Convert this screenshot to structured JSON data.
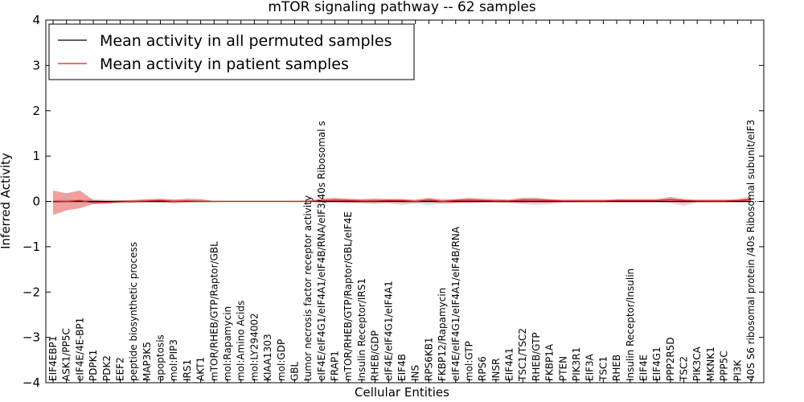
{
  "chart_data": {
    "type": "line",
    "title": "mTOR signaling pathway -- 62 samples",
    "xlabel": "Cellular Entities",
    "ylabel": "Inferred Activity",
    "ylim": [
      -4,
      4
    ],
    "yticks": [
      4,
      3,
      2,
      1,
      0,
      -1,
      -2,
      -3,
      -4
    ],
    "ytick_labels": [
      "4",
      "3",
      "2",
      "1",
      "0",
      "−1",
      "−2",
      "−3",
      "−4"
    ],
    "grid": false,
    "legend_position": "top-left",
    "categories": [
      "EIF4EBP1",
      "ASK1/PP5C",
      "eIF4E/4E-BP1",
      "PDPK1",
      "PDK2",
      "EEF2",
      "peptide biosynthetic process",
      "MAP3K5",
      "apoptosis",
      "mol:PIP3",
      "IRS1",
      "AKT1",
      "mTOR/RHEB/GTP/Raptor/GBL",
      "mol:Rapamycin",
      "mol:Amino Acids",
      "mol:LY294002",
      "KIAA1303",
      "mol:GDP",
      "GBL",
      "tumor necrosis factor receptor activity",
      "eIF4E/eIF4G1/eIF4A1/eIF4B/RNA/eIF3/40s Ribosomal s",
      "FRAP1",
      "mTOR/RHEB/GTP/Raptor/GBL/eIF4E",
      "Insulin Receptor/IRS1",
      "RHEB/GDP",
      "eIF4E/eIF4G1/eIF4A1",
      "EIF4B",
      "INS",
      "RPS6KB1",
      "FKBP12/Rapamycin",
      "eIF4E/eIF4G1/eIF4A1/eIF4B/RNA",
      "mol:GTP",
      "RPS6",
      "INSR",
      "EIF4A1",
      "TSC1/TSC2",
      "RHEB/GTP",
      "FKBP1A",
      "PTEN",
      "PIK3R1",
      "EIF3A",
      "TSC1",
      "RHEB",
      "Insulin Receptor/Insulin",
      "EIF4E",
      "EIF4G1",
      "PPP2R5D",
      "TSC2",
      "PIK3CA",
      "MKNK1",
      "PPP5C",
      "PI3K",
      "40S S6 ribosomal protein /40s Ribosomal subunit/eIF3"
    ],
    "series": [
      {
        "name": "Mean activity in all permuted samples",
        "color": "#000000",
        "values": [
          0,
          0,
          0,
          0,
          0,
          0,
          0,
          0,
          0,
          0,
          0,
          0,
          0,
          0,
          0,
          0,
          0,
          0,
          0,
          0,
          0,
          0,
          0,
          0,
          0,
          0,
          0,
          0,
          0,
          0,
          0,
          0,
          0,
          0,
          0,
          0,
          0,
          0,
          0,
          0,
          0,
          0,
          0,
          0,
          0,
          0,
          0,
          0,
          0,
          0,
          0,
          0,
          0
        ],
        "lower": [
          -0.03,
          -0.03,
          -0.03,
          -0.04,
          -0.03,
          -0.02,
          -0.02,
          -0.03,
          -0.03,
          -0.02,
          -0.02,
          -0.02,
          -0.01,
          -0.01,
          -0.01,
          -0.01,
          -0.01,
          -0.01,
          -0.01,
          -0.01,
          -0.03,
          -0.03,
          -0.05,
          -0.04,
          -0.06,
          -0.05,
          -0.08,
          -0.04,
          -0.08,
          -0.05,
          -0.04,
          -0.03,
          -0.03,
          -0.03,
          -0.03,
          -0.06,
          -0.08,
          -0.06,
          -0.03,
          -0.03,
          -0.02,
          -0.02,
          -0.02,
          -0.02,
          -0.02,
          -0.02,
          -0.04,
          -0.1,
          -0.03,
          -0.02,
          -0.02,
          -0.02,
          -0.02
        ],
        "upper": [
          0.04,
          0.04,
          0.04,
          0.05,
          0.04,
          0.03,
          0.03,
          0.04,
          0.05,
          0.04,
          0.03,
          0.03,
          0.01,
          0.01,
          0.01,
          0.01,
          0.01,
          0.01,
          0.01,
          0.01,
          0.03,
          0.04,
          0.05,
          0.05,
          0.06,
          0.06,
          0.05,
          0.05,
          0.06,
          0.06,
          0.05,
          0.04,
          0.04,
          0.04,
          0.04,
          0.05,
          0.05,
          0.05,
          0.03,
          0.03,
          0.03,
          0.03,
          0.03,
          0.03,
          0.03,
          0.03,
          0.04,
          0.05,
          0.03,
          0.03,
          0.03,
          0.03,
          0.03
        ]
      },
      {
        "name": "Mean activity in patient samples",
        "color": "#d62020",
        "values": [
          -0.01,
          0.0,
          0.02,
          -0.03,
          -0.02,
          -0.01,
          0.0,
          0.01,
          0.02,
          0.0,
          0.01,
          0.0,
          0.0,
          0.0,
          0.0,
          0.0,
          0.0,
          0.0,
          0.0,
          0.0,
          0.02,
          0.03,
          0.02,
          0.01,
          0.01,
          0.02,
          0.02,
          0.0,
          0.03,
          0.0,
          0.02,
          0.03,
          0.02,
          0.01,
          0.01,
          0.03,
          0.03,
          0.02,
          0.01,
          0.01,
          0.01,
          0.01,
          0.02,
          0.02,
          0.02,
          0.02,
          0.04,
          0.02,
          0.01,
          0.01,
          0.01,
          0.02,
          0.04
        ],
        "lower": [
          -0.3,
          -0.2,
          -0.15,
          -0.06,
          -0.05,
          -0.03,
          -0.03,
          -0.02,
          -0.02,
          -0.04,
          -0.02,
          -0.02,
          -0.01,
          -0.01,
          -0.01,
          -0.01,
          -0.01,
          -0.01,
          -0.01,
          -0.01,
          -0.02,
          -0.02,
          -0.02,
          -0.03,
          -0.03,
          -0.02,
          -0.03,
          -0.03,
          -0.02,
          -0.04,
          -0.03,
          -0.03,
          -0.02,
          -0.02,
          -0.03,
          -0.03,
          -0.03,
          -0.03,
          -0.02,
          -0.02,
          -0.02,
          -0.02,
          -0.02,
          -0.02,
          -0.02,
          -0.02,
          -0.02,
          -0.03,
          -0.02,
          -0.02,
          -0.02,
          -0.02,
          -0.02
        ],
        "upper": [
          0.24,
          0.18,
          0.24,
          0.03,
          0.01,
          0.02,
          0.03,
          0.05,
          0.06,
          0.04,
          0.06,
          0.05,
          0.01,
          0.01,
          0.01,
          0.01,
          0.01,
          0.01,
          0.01,
          0.02,
          0.06,
          0.08,
          0.06,
          0.05,
          0.06,
          0.05,
          0.05,
          0.03,
          0.08,
          0.03,
          0.05,
          0.08,
          0.06,
          0.05,
          0.04,
          0.08,
          0.08,
          0.05,
          0.04,
          0.04,
          0.04,
          0.04,
          0.05,
          0.05,
          0.05,
          0.05,
          0.1,
          0.05,
          0.04,
          0.04,
          0.04,
          0.05,
          0.1
        ]
      }
    ]
  }
}
